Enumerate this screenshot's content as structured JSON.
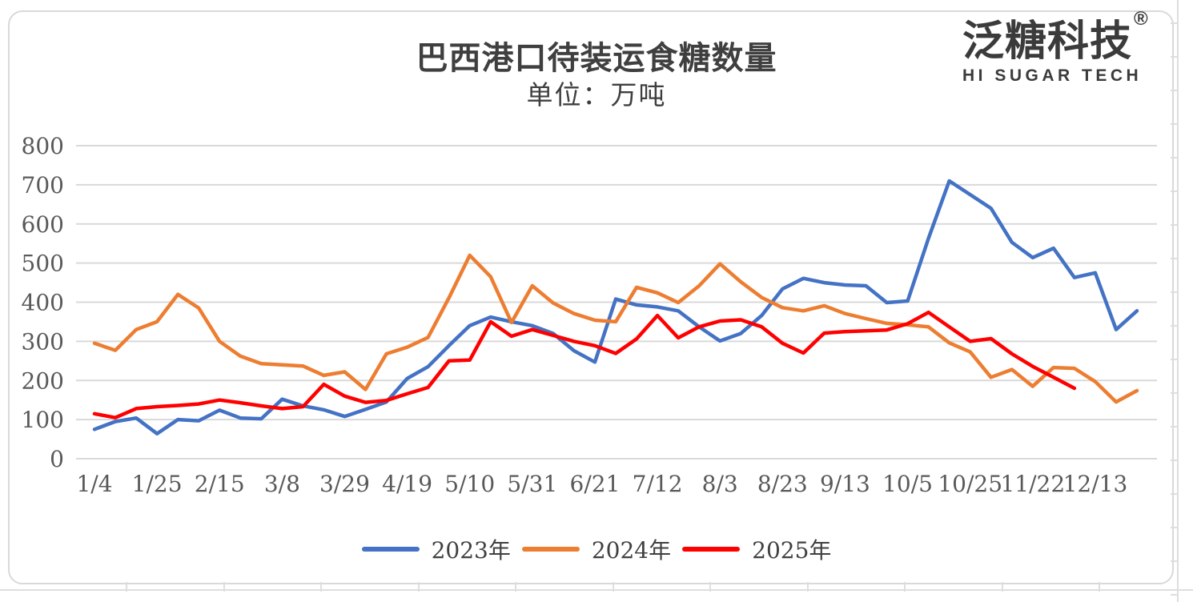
{
  "logo": {
    "name_cn": "泛糖科技",
    "registered_mark": "®",
    "name_en": "HI SUGAR TECH"
  },
  "chart_data": {
    "type": "line",
    "title": "巴西港口待装运食糖数量",
    "subtitle": "单位：万吨",
    "ylabel": "",
    "xlabel": "",
    "ylim": [
      0,
      800
    ],
    "y_ticks": [
      0,
      100,
      200,
      300,
      400,
      500,
      600,
      700,
      800
    ],
    "x_labels": [
      "1/4",
      "1/25",
      "2/15",
      "3/8",
      "3/29",
      "4/19",
      "5/10",
      "5/31",
      "6/21",
      "7/12",
      "8/3",
      "8/23",
      "9/13",
      "10/5",
      "10/25",
      "11/22",
      "12/13"
    ],
    "points_per_label": 3,
    "grid": "horizontal-only",
    "legend_position": "bottom-center",
    "gridline_color": "#d9d9d9",
    "axis_label_color": "#595959",
    "series": [
      {
        "name": "2023年",
        "color": "#4472C4",
        "values": [
          75,
          95,
          104,
          64,
          100,
          97,
          124,
          104,
          102,
          152,
          135,
          125,
          108,
          126,
          145,
          205,
          235,
          289,
          340,
          362,
          350,
          340,
          320,
          276,
          247,
          408,
          393,
          388,
          378,
          337,
          301,
          320,
          366,
          434,
          461,
          450,
          444,
          442,
          399,
          403,
          563,
          710,
          675,
          640,
          553,
          514,
          538,
          463,
          475,
          330,
          378
        ]
      },
      {
        "name": "2024年",
        "color": "#ED7D31",
        "values": [
          295,
          277,
          330,
          350,
          420,
          385,
          300,
          262,
          243,
          240,
          237,
          213,
          222,
          177,
          268,
          285,
          310,
          411,
          520,
          465,
          348,
          442,
          398,
          371,
          354,
          350,
          438,
          424,
          399,
          442,
          498,
          452,
          412,
          386,
          378,
          391,
          371,
          358,
          346,
          342,
          337,
          296,
          273,
          208,
          228,
          185,
          233,
          231,
          197,
          145,
          174
        ]
      },
      {
        "name": "2025年",
        "color": "#FF0000",
        "values": [
          115,
          105,
          128,
          133,
          136,
          140,
          150,
          143,
          135,
          128,
          133,
          190,
          160,
          144,
          149,
          166,
          182,
          250,
          252,
          350,
          313,
          330,
          315,
          300,
          289,
          269,
          306,
          366,
          309,
          337,
          352,
          355,
          337,
          295,
          270,
          321,
          325,
          327,
          329,
          345,
          374,
          337,
          300,
          307,
          268,
          236,
          208,
          180
        ]
      }
    ]
  }
}
